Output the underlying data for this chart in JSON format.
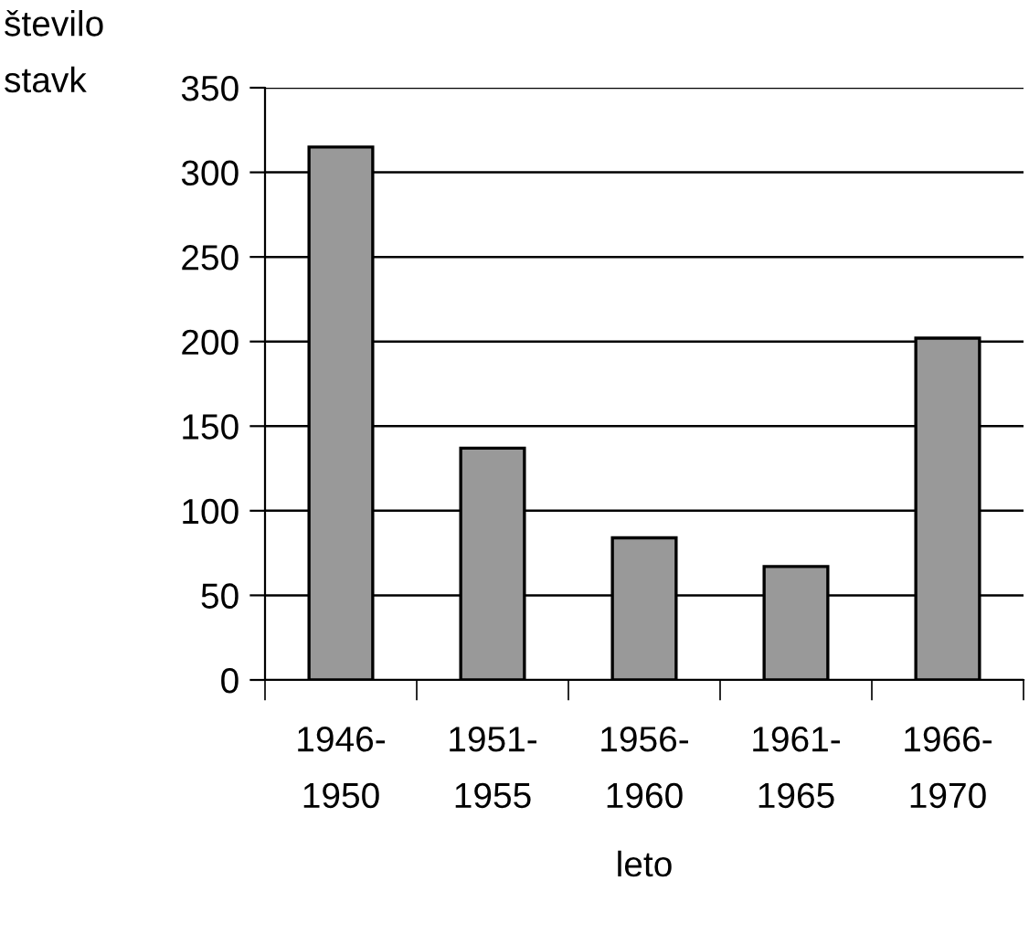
{
  "chart_data": {
    "type": "bar",
    "ylabel": "število\nstavk",
    "xlabel": "leto",
    "categories": [
      "1946-\n1950",
      "1951-\n1955",
      "1956-\n1960",
      "1961-\n1965",
      "1966-\n1970"
    ],
    "values": [
      315,
      137,
      84,
      67,
      202
    ],
    "color": "#999999",
    "ylim": [
      0,
      350
    ],
    "yticks": [
      0,
      50,
      100,
      150,
      200,
      250,
      300,
      350
    ],
    "grid": "y",
    "legend": false
  }
}
